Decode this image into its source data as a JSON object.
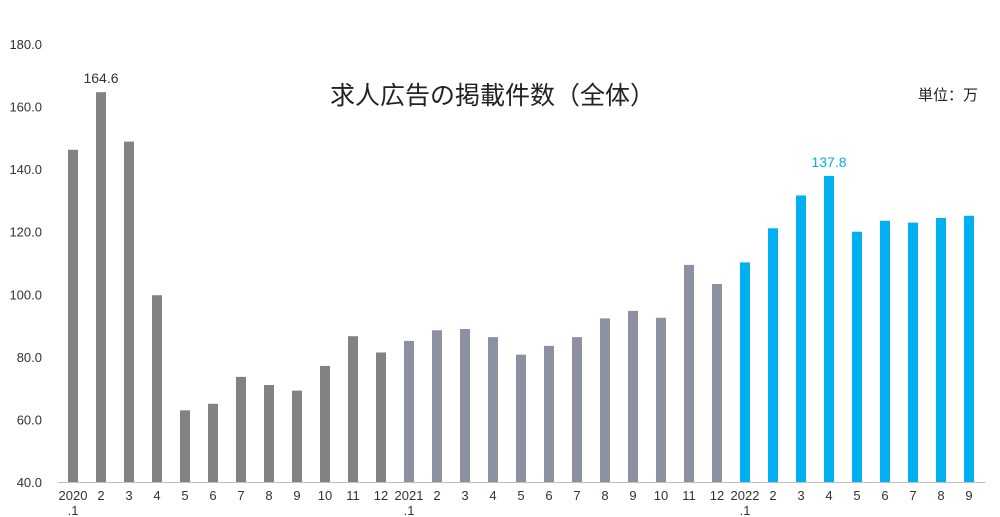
{
  "chart_data": {
    "type": "bar",
    "title": "求人広告の掲載件数（全体）",
    "unit_label": "単位：万",
    "ylim": [
      40,
      180
    ],
    "yticks": [
      "40.0",
      "60.0",
      "80.0",
      "100.0",
      "120.0",
      "140.0",
      "160.0",
      "180.0"
    ],
    "grid": false,
    "categories": [
      [
        "2020",
        ".1"
      ],
      [
        "2"
      ],
      [
        "3"
      ],
      [
        "4"
      ],
      [
        "5"
      ],
      [
        "6"
      ],
      [
        "7"
      ],
      [
        "8"
      ],
      [
        "9"
      ],
      [
        "10"
      ],
      [
        "11"
      ],
      [
        "12"
      ],
      [
        "2021",
        ".1"
      ],
      [
        "2"
      ],
      [
        "3"
      ],
      [
        "4"
      ],
      [
        "5"
      ],
      [
        "6"
      ],
      [
        "7"
      ],
      [
        "8"
      ],
      [
        "9"
      ],
      [
        "10"
      ],
      [
        "11"
      ],
      [
        "12"
      ],
      [
        "2022",
        ".1"
      ],
      [
        "2"
      ],
      [
        "3"
      ],
      [
        "4"
      ],
      [
        "5"
      ],
      [
        "6"
      ],
      [
        "7"
      ],
      [
        "8"
      ],
      [
        "9"
      ]
    ],
    "values": [
      146.2,
      164.6,
      148.8,
      99.7,
      62.9,
      65.0,
      73.6,
      71.0,
      69.2,
      77.1,
      86.6,
      81.4,
      85.1,
      88.5,
      88.9,
      86.3,
      80.7,
      83.5,
      86.3,
      92.3,
      94.7,
      92.5,
      109.4,
      103.3,
      110.2,
      121.1,
      131.6,
      137.8,
      120.0,
      123.5,
      122.9,
      124.4,
      125.1
    ],
    "colors": [
      "#828282",
      "#828282",
      "#828282",
      "#828282",
      "#828282",
      "#828282",
      "#828282",
      "#828282",
      "#828282",
      "#828282",
      "#828282",
      "#828282",
      "#8c90a0",
      "#8c90a0",
      "#8c90a0",
      "#8c90a0",
      "#8c90a0",
      "#8c90a0",
      "#8c90a0",
      "#8c90a0",
      "#8c90a0",
      "#8c90a0",
      "#8c90a0",
      "#8c90a0",
      "#00b0f0",
      "#00b0f0",
      "#00b0f0",
      "#00b0f0",
      "#00b0f0",
      "#00b0f0",
      "#00b0f0",
      "#00b0f0",
      "#00b0f0"
    ],
    "data_labels": [
      {
        "index": 1,
        "text": "164.6",
        "color": "#333333"
      },
      {
        "index": 27,
        "text": "137.8",
        "color": "#00b0f0"
      }
    ]
  }
}
